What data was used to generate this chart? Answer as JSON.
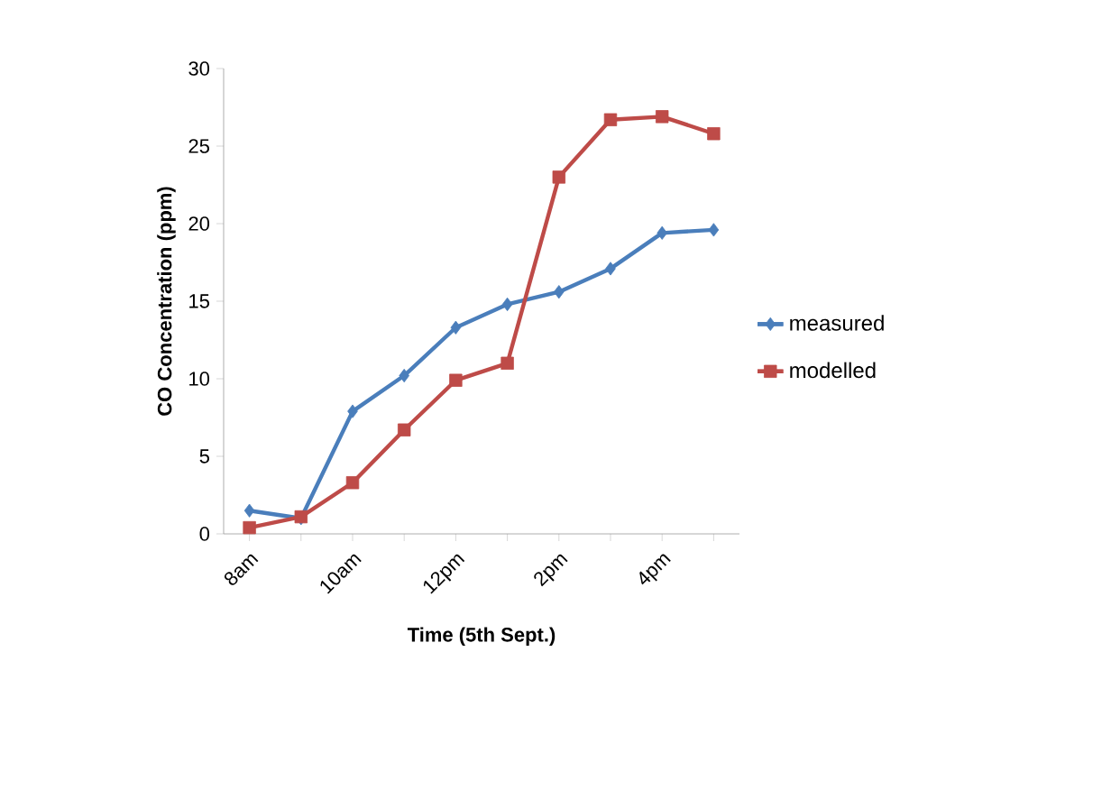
{
  "chart_data": {
    "type": "line",
    "xlabel": "Time (5th Sept.)",
    "ylabel": "CO Concentration (ppm)",
    "categories": [
      "8am",
      null,
      "10am",
      null,
      "12pm",
      null,
      "2pm",
      null,
      "4pm",
      null
    ],
    "series": [
      {
        "name": "measured",
        "color": "#4a7ebb",
        "marker": "diamond",
        "values": [
          1.5,
          1.0,
          7.9,
          10.2,
          13.3,
          14.8,
          15.6,
          17.1,
          19.4,
          19.6
        ]
      },
      {
        "name": "modelled",
        "color": "#be4b48",
        "marker": "square",
        "values": [
          0.4,
          1.1,
          3.3,
          6.7,
          9.9,
          11.0,
          23.0,
          26.7,
          26.9,
          25.8
        ]
      }
    ],
    "ylim": [
      0,
      30
    ],
    "yticks": [
      0,
      5,
      10,
      15,
      20,
      25,
      30
    ],
    "grid": false,
    "legend": "right",
    "line_style": "solid"
  }
}
